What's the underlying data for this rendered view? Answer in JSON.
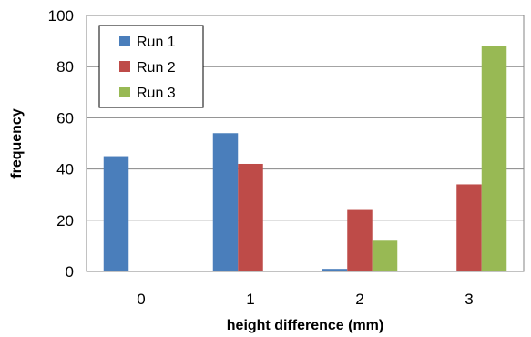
{
  "chart_data": {
    "type": "bar",
    "categories": [
      "0",
      "1",
      "2",
      "3"
    ],
    "series": [
      {
        "name": "Run 1",
        "color": "#4a7ebb",
        "values": [
          45,
          54,
          1,
          0
        ]
      },
      {
        "name": "Run 2",
        "color": "#be4b48",
        "values": [
          0,
          42,
          24,
          34
        ]
      },
      {
        "name": "Run 3",
        "color": "#98b954",
        "values": [
          0,
          0,
          12,
          88
        ]
      }
    ],
    "xlabel": "height difference (mm)",
    "ylabel": "frequency",
    "ylim": [
      0,
      100
    ],
    "yticks": [
      "0",
      "20",
      "40",
      "60",
      "80",
      "100"
    ],
    "grid": true,
    "legend_position": "top-left"
  }
}
